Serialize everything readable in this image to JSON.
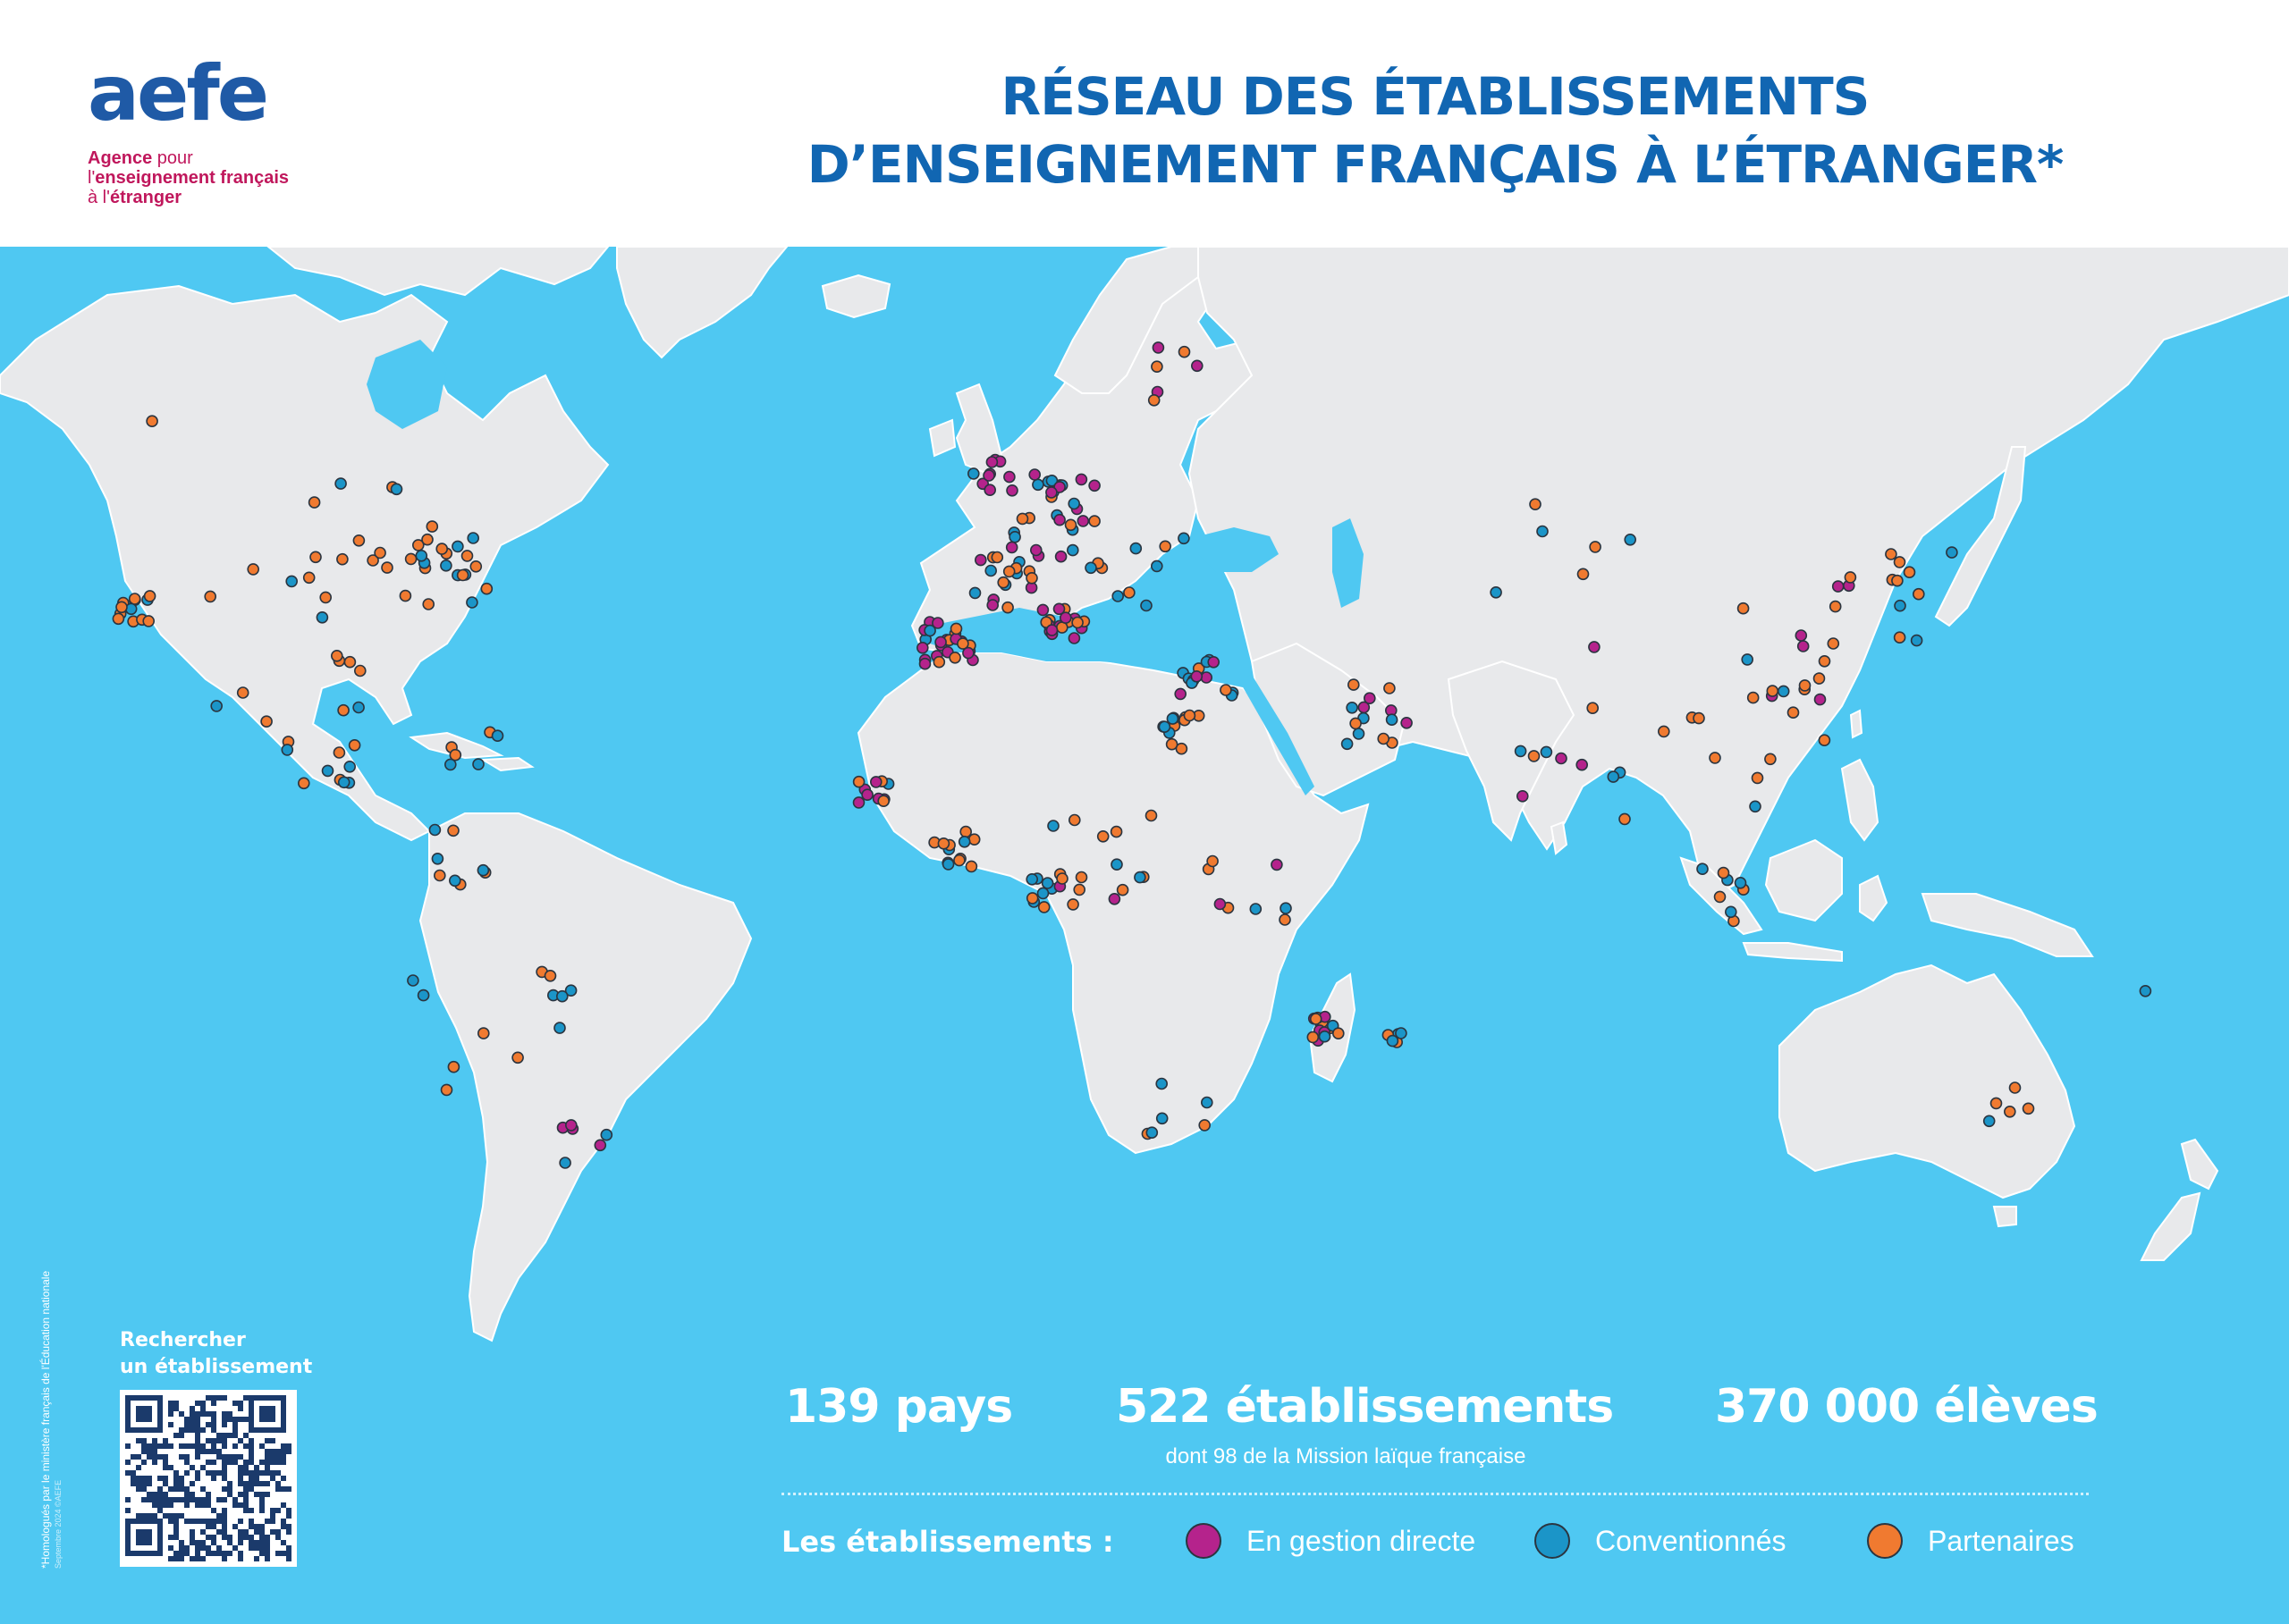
{
  "header": {
    "logo_mark": "aefe",
    "logo_line1_a": "Agence",
    "logo_line1_b": " pour",
    "logo_line2_a": "l'",
    "logo_line2_b": "enseignement français",
    "logo_line3_a": "à l'",
    "logo_line3_b": "étranger",
    "title_line1": "RÉSEAU DES ÉTABLISSEMENTS",
    "title_line2": "D’ENSEIGNEMENT FRANÇAIS À L’ÉTRANGER*"
  },
  "colors": {
    "ocean": "#4fc8f2",
    "land": "#e8e9eb",
    "title": "#1166b2",
    "logo": "#1f5aa6",
    "logo_sub": "#c0175c",
    "direct": "#b5238c",
    "conventionnes": "#1b95c8",
    "partenaires": "#f07a30"
  },
  "stats": {
    "countries": "139 pays",
    "schools": "522 établissements",
    "schools_sub": "dont 98 de la Mission laïque française",
    "students": "370 000 élèves"
  },
  "legend": {
    "title": "Les établissements :",
    "items": [
      {
        "key": "direct",
        "label": "En gestion directe"
      },
      {
        "key": "conventionnes",
        "label": "Conventionnés"
      },
      {
        "key": "partenaires",
        "label": "Partenaires"
      }
    ]
  },
  "qr": {
    "label_line1": "Rechercher",
    "label_line2": "un établissement"
  },
  "footnote": {
    "text": "*Homologués par le ministère français de l'Éducation nationale",
    "note": "Septembre 2024 ©AEFE"
  }
}
